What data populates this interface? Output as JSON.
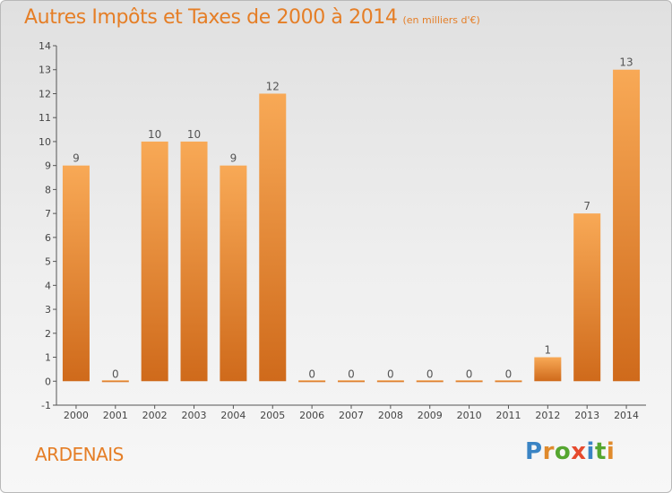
{
  "header": {
    "title": "Autres Impôts et Taxes de 2000 à 2014",
    "unit": "(en milliers d'€)"
  },
  "footer": {
    "location": "ARDENAIS",
    "logo": "Proxiti"
  },
  "colors": {
    "accent": "#e57e26",
    "bar_light": "#f8a956",
    "bar_dark": "#cf6a1b",
    "logo_letters": [
      "#3a84c4",
      "#e08a2c",
      "#55a630",
      "#e64a2e",
      "#3a84c4",
      "#55a630",
      "#e08a2c"
    ]
  },
  "chart_data": {
    "type": "bar",
    "categories": [
      "2000",
      "2001",
      "2002",
      "2003",
      "2004",
      "2005",
      "2006",
      "2007",
      "2008",
      "2009",
      "2010",
      "2011",
      "2012",
      "2013",
      "2014"
    ],
    "values": [
      9,
      0,
      10,
      10,
      9,
      12,
      0,
      0,
      0,
      0,
      0,
      0,
      1,
      7,
      13
    ],
    "data_labels": [
      "9",
      "0",
      "10",
      "10",
      "9",
      "12",
      "0",
      "0",
      "0",
      "0",
      "0",
      "0",
      "1",
      "7",
      "13"
    ],
    "ylim": [
      -1,
      14
    ],
    "yticks": [
      -1,
      0,
      1,
      2,
      3,
      4,
      5,
      6,
      7,
      8,
      9,
      10,
      11,
      12,
      13,
      14
    ],
    "ytick_labels": [
      "-1",
      "0",
      "1",
      "2",
      "3",
      "4",
      "5",
      "6",
      "7",
      "8",
      "9",
      "10",
      "11",
      "12",
      "13",
      "14"
    ],
    "grid": false,
    "legend": "none"
  }
}
